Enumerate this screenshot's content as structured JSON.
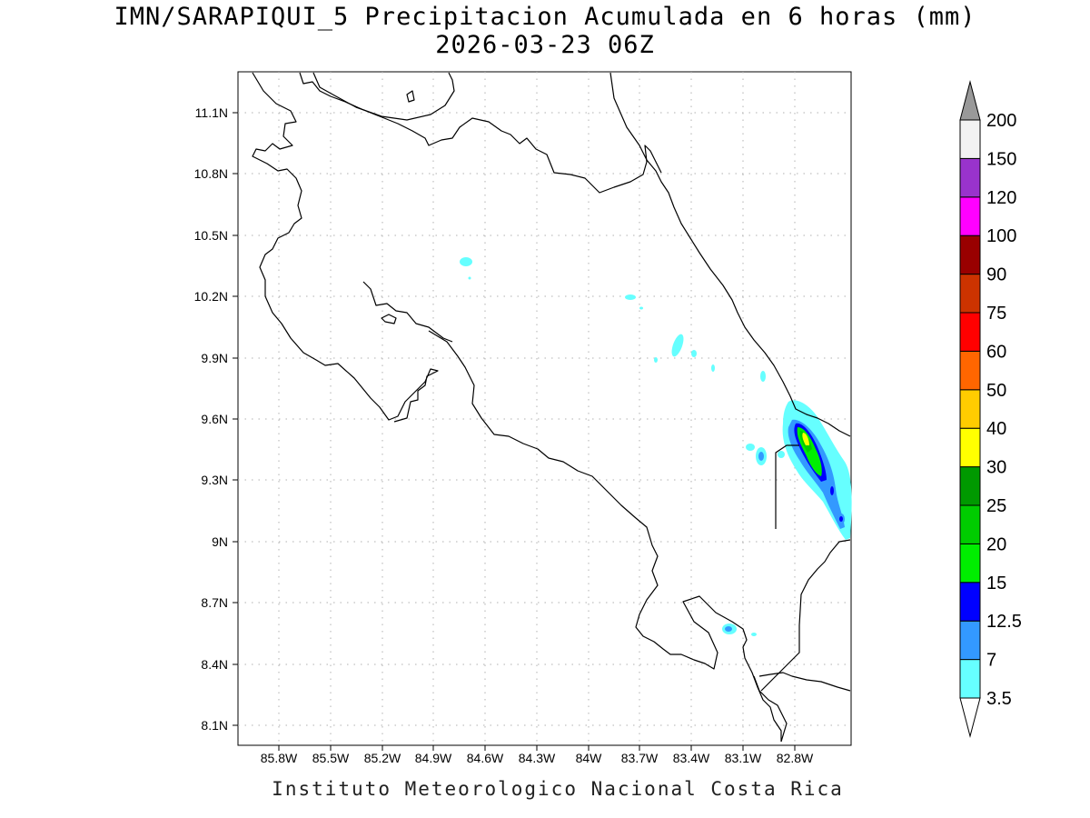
{
  "title": "IMN/SARAPIQUI_5 Precipitacion Acumulada en 6 horas (mm)",
  "subtitle": "2026-03-23 06Z",
  "footer": "Instituto Meteorologico Nacional Costa Rica",
  "map": {
    "lon_labels": [
      "85.8W",
      "85.5W",
      "85.2W",
      "84.9W",
      "84.6W",
      "84.3W",
      "84W",
      "83.7W",
      "83.4W",
      "83.1W",
      "82.8W"
    ],
    "lat_labels": [
      "11.1N",
      "10.8N",
      "10.5N",
      "10.2N",
      "9.9N",
      "9.6N",
      "9.3N",
      "9N",
      "8.7N",
      "8.4N",
      "8.1N"
    ],
    "grid": "dotted"
  },
  "colorbar": {
    "levels": [
      "3.5",
      "7",
      "12.5",
      "15",
      "20",
      "25",
      "30",
      "40",
      "50",
      "60",
      "75",
      "90",
      "100",
      "120",
      "150",
      "200"
    ],
    "colors": [
      "#66ffff",
      "#3399ff",
      "#0000ff",
      "#00ee00",
      "#00cc00",
      "#009900",
      "#ffff00",
      "#ffcc00",
      "#ff6600",
      "#ff0000",
      "#cc3300",
      "#990000",
      "#ff00ff",
      "#9933cc",
      "#f2f2f2"
    ],
    "over_color": "#999999",
    "under_color": "#ffffff"
  }
}
